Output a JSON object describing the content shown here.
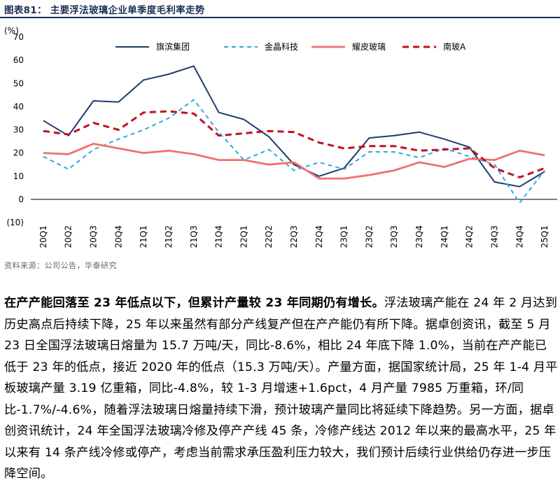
{
  "figure_title": "图表81：  主要浮法玻璃企业单季度毛利率走势",
  "source": "资料来源：公司公告，华泰研究",
  "paragraph": {
    "lead": "在产产能回落至 23 年低点以下，但累计产量较 23 年同期仍有增长。",
    "body": "浮法玻璃产能在 24 年 2 月达到历史高点后持续下降，25 年以来虽然有部分产线复产但在产产能仍有所下降。据卓创资讯，截至 5 月 23 日全国浮法玻璃日熔量为 15.7 万吨/天，同比-8.6%，相比 24 年底下降 1.0%，当前在产产能已低于 23 年的低点，接近 2020 年的低点（15.3 万吨/天）。产量方面，据国家统计局，25 年 1-4 月平板玻璃产量 3.19 亿重箱，同比-4.8%，较 1-3 月增速+1.6pct，4 月产量 7985 万重箱，环/同比-1.7%/-4.6%，随着浮法玻璃日熔量持续下滑，预计玻璃产量同比将延续下降趋势。另一方面，据卓创资讯统计，24 年全国浮法玻璃冷修及停产产线 45 条，冷修产线达 2012 年以来的最高水平，25 年以来有 14 条产线冷修或停产，考虑当前需求承压盈利压力较大，我们预计后续行业供给仍存进一步压降空间。"
  },
  "chart_data": {
    "type": "line",
    "title": "主要浮法玻璃企业单季度毛利率走势",
    "ylabel": "(%)",
    "xlabel": "",
    "ylim": [
      -10,
      70
    ],
    "yticks": [
      -10,
      0,
      10,
      20,
      30,
      40,
      50,
      60,
      70
    ],
    "ytick_labels": [
      "(10)",
      "0",
      "10",
      "20",
      "30",
      "40",
      "50",
      "60",
      "70"
    ],
    "legend_position": "top",
    "categories": [
      "20Q1",
      "20Q2",
      "20Q3",
      "20Q4",
      "21Q1",
      "21Q2",
      "21Q3",
      "21Q4",
      "22Q1",
      "22Q2",
      "22Q3",
      "22Q4",
      "23Q1",
      "23Q2",
      "23Q3",
      "23Q4",
      "24Q1",
      "24Q2",
      "24Q3",
      "24Q4",
      "25Q1"
    ],
    "series": [
      {
        "name": "旗滨集团",
        "color": "#1f3b6e",
        "style": "solid",
        "values": [
          34,
          27.5,
          42.5,
          42,
          51.5,
          54,
          57.5,
          37.5,
          34.5,
          27,
          15,
          10,
          13.5,
          26.5,
          27.5,
          29,
          26,
          22.5,
          7.5,
          5.5,
          12
        ]
      },
      {
        "name": "金晶科技",
        "color": "#2ea8e0",
        "style": "dash",
        "values": [
          18.5,
          13,
          21.5,
          26,
          30,
          35,
          43,
          29,
          17,
          21.5,
          12.5,
          16,
          13,
          20.5,
          20.5,
          18,
          22,
          18.5,
          15,
          -1.5,
          12.5
        ]
      },
      {
        "name": "耀皮玻璃",
        "color": "#f07070",
        "style": "solid",
        "values": [
          20,
          19.5,
          24,
          22,
          20,
          21,
          19.5,
          17,
          17,
          15,
          16,
          9,
          9,
          10.5,
          12.5,
          16,
          14,
          17.5,
          17,
          21,
          19
        ]
      },
      {
        "name": "南玻A",
        "color": "#c0101e",
        "style": "bigdash",
        "values": [
          29.5,
          28,
          33,
          30,
          37.5,
          38,
          37,
          27.5,
          28.5,
          29.5,
          29,
          24.5,
          22,
          23,
          23,
          21,
          21.5,
          22,
          13.5,
          9.5,
          13.5
        ]
      }
    ]
  }
}
